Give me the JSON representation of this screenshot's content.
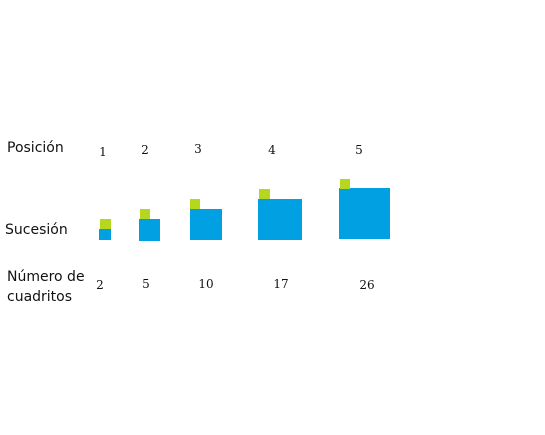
{
  "labels": {
    "position": "Posición",
    "sequence": "Sucesión",
    "count_line1": "Número de",
    "count_line2": "cuadritos"
  },
  "terms": [
    {
      "position": "1",
      "count": "2"
    },
    {
      "position": "2",
      "count": "5"
    },
    {
      "position": "3",
      "count": "10"
    },
    {
      "position": "4",
      "count": "17"
    },
    {
      "position": "5",
      "count": "26"
    }
  ],
  "colors": {
    "blue_square": "#00a0e3",
    "green_square": "#b5d81f"
  }
}
